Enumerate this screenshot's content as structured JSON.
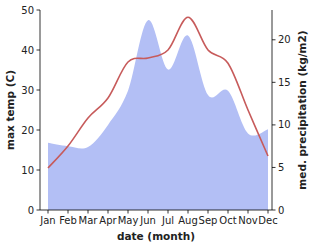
{
  "chart_data": {
    "type": "line",
    "x_label": "date (month)",
    "y_label": "max temp (C)",
    "y2_label": "med. precipitation (kg/m2)",
    "categories": [
      "Jan",
      "Feb",
      "Mar",
      "Apr",
      "May",
      "Jun",
      "Jul",
      "Aug",
      "Sep",
      "Oct",
      "Nov",
      "Dec"
    ],
    "ylim": [
      0,
      50
    ],
    "yticks": [
      0,
      10,
      20,
      30,
      40,
      50
    ],
    "y2lim": [
      0,
      23.5
    ],
    "y2ticks": [
      0,
      5,
      10,
      15,
      20
    ],
    "grid": false,
    "series": [
      {
        "name": "med. precipitation",
        "type": "area",
        "axis": "y2",
        "color": "#b3bff5",
        "values": [
          7.9,
          7.5,
          7.4,
          10,
          14,
          22.3,
          16.5,
          20.5,
          13.5,
          14,
          9,
          9.5
        ]
      },
      {
        "name": "max temp",
        "type": "line",
        "color": "#c75b5b",
        "values": [
          10.5,
          16,
          23,
          28,
          37,
          38,
          40,
          48.2,
          40,
          36.7,
          25,
          13.5
        ]
      }
    ]
  }
}
